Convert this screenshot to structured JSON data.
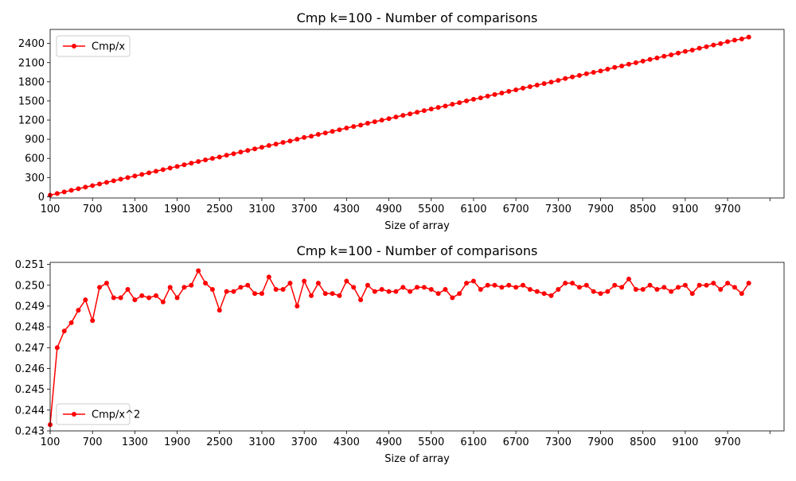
{
  "chart_data": [
    {
      "type": "line",
      "title": "Cmp k=100 - Number of comparisons",
      "xlabel": "Size of array",
      "ylabel": "",
      "xlim": [
        100,
        10500
      ],
      "ylim": [
        -20,
        2620
      ],
      "xticks": [
        100,
        700,
        1300,
        1900,
        2500,
        3100,
        3700,
        4300,
        4900,
        5500,
        6100,
        6700,
        7300,
        7900,
        8500,
        9100,
        9700,
        10300
      ],
      "xtick_labels": [
        "100",
        "700",
        "1300",
        "1900",
        "2500",
        "3100",
        "3700",
        "4300",
        "4900",
        "5500",
        "6100",
        "6700",
        "7300",
        "7900",
        "8500",
        "9100",
        "9700",
        ""
      ],
      "yticks": [
        0,
        300,
        600,
        900,
        1200,
        1500,
        1800,
        2100,
        2400
      ],
      "ytick_labels": [
        "0",
        "300",
        "600",
        "900",
        "1200",
        "1500",
        "1800",
        "2100",
        "2400"
      ],
      "legend_position": "upper-left",
      "series": [
        {
          "name": "Cmp/x",
          "color": "#ff0000",
          "marker": "circle",
          "x": [
            100,
            200,
            300,
            400,
            500,
            600,
            700,
            800,
            900,
            1000,
            1100,
            1200,
            1300,
            1400,
            1500,
            1600,
            1700,
            1800,
            1900,
            2000,
            2100,
            2200,
            2300,
            2400,
            2500,
            2600,
            2700,
            2800,
            2900,
            3000,
            3100,
            3200,
            3300,
            3400,
            3500,
            3600,
            3700,
            3800,
            3900,
            4000,
            4100,
            4200,
            4300,
            4400,
            4500,
            4600,
            4700,
            4800,
            4900,
            5000,
            5100,
            5200,
            5300,
            5400,
            5500,
            5600,
            5700,
            5800,
            5900,
            6000,
            6100,
            6200,
            6300,
            6400,
            6500,
            6600,
            6700,
            6800,
            6900,
            7000,
            7100,
            7200,
            7300,
            7400,
            7500,
            7600,
            7700,
            7800,
            7900,
            8000,
            8100,
            8200,
            8300,
            8400,
            8500,
            8600,
            8700,
            8800,
            8900,
            9000,
            9100,
            9200,
            9300,
            9400,
            9500,
            9600,
            9700,
            9800,
            9900,
            10000
          ],
          "y": [
            24.3,
            49.4,
            74.3,
            99.3,
            124.4,
            149.6,
            173.8,
            199.9,
            225.1,
            249.4,
            274.3,
            299.8,
            324.1,
            349.3,
            374.3,
            399.2,
            423.6,
            449.1,
            473.8,
            499.8,
            525.0,
            551.5,
            576.2,
            599.5,
            622.0,
            649.2,
            673.2,
            698.7,
            724.5,
            748.9,
            773.8,
            801.2,
            824.2,
            849.5,
            871.5,
            899.4,
            928.6,
            947.1,
            976.0,
            998.4,
            1023.6,
            1047.9,
            1076.1,
            1099.6,
            1120.7,
            1150.8,
            1173.8,
            1199.0,
            1222.8,
            1248.7,
            1273.5,
            1297.4,
            1323.5,
            1348.1,
            1372.5,
            1398.5,
            1419.8,
            1447.2,
            1472.5,
            1500.6,
            1526.0,
            1546.8,
            1575.6,
            1600.0,
            1623.2,
            1650.3,
            1673.3,
            1700.0,
            1723.1,
            1747.6,
            1771.3,
            1794.2,
            1822.0,
            1850.7,
            1875.6,
            1898.6,
            1925.1,
            1946.8,
            1969.8,
            1997.4,
            2024.8,
            2046.8,
            2075.2,
            2098.3,
            2124.1,
            2150.4,
            2172.6,
            2199.6,
            2221.8,
            2249.4,
            2276.1,
            2296.4,
            2325.2,
            2349.6,
            2375.9,
            2396.9,
            2427.8,
            2451.3,
            2470.6,
            2500.6
          ]
        }
      ]
    },
    {
      "type": "line",
      "title": "Cmp k=100 - Number of comparisons",
      "xlabel": "Size of array",
      "ylabel": "",
      "xlim": [
        100,
        10500
      ],
      "ylim": [
        0.243,
        0.2511
      ],
      "xticks": [
        100,
        700,
        1300,
        1900,
        2500,
        3100,
        3700,
        4300,
        4900,
        5500,
        6100,
        6700,
        7300,
        7900,
        8500,
        9100,
        9700,
        10300
      ],
      "xtick_labels": [
        "100",
        "700",
        "1300",
        "1900",
        "2500",
        "3100",
        "3700",
        "4300",
        "4900",
        "5500",
        "6100",
        "6700",
        "7300",
        "7900",
        "8500",
        "9100",
        "9700",
        ""
      ],
      "yticks": [
        0.243,
        0.244,
        0.245,
        0.246,
        0.247,
        0.248,
        0.249,
        0.25,
        0.251
      ],
      "ytick_labels": [
        "0.243",
        "0.244",
        "0.245",
        "0.246",
        "0.247",
        "0.248",
        "0.249",
        "0.250",
        "0.251"
      ],
      "legend_position": "lower-left",
      "series": [
        {
          "name": "Cmp/x^2",
          "color": "#ff0000",
          "marker": "circle",
          "x": [
            100,
            200,
            300,
            400,
            500,
            600,
            700,
            800,
            900,
            1000,
            1100,
            1200,
            1300,
            1400,
            1500,
            1600,
            1700,
            1800,
            1900,
            2000,
            2100,
            2200,
            2300,
            2400,
            2500,
            2600,
            2700,
            2800,
            2900,
            3000,
            3100,
            3200,
            3300,
            3400,
            3500,
            3600,
            3700,
            3800,
            3900,
            4000,
            4100,
            4200,
            4300,
            4400,
            4500,
            4600,
            4700,
            4800,
            4900,
            5000,
            5100,
            5200,
            5300,
            5400,
            5500,
            5600,
            5700,
            5800,
            5900,
            6000,
            6100,
            6200,
            6300,
            6400,
            6500,
            6600,
            6700,
            6800,
            6900,
            7000,
            7100,
            7200,
            7300,
            7400,
            7500,
            7600,
            7700,
            7800,
            7900,
            8000,
            8100,
            8200,
            8300,
            8400,
            8500,
            8600,
            8700,
            8800,
            8900,
            9000,
            9100,
            9200,
            9300,
            9400,
            9500,
            9600,
            9700,
            9800,
            9900,
            10000
          ],
          "y": [
            0.2433,
            0.247,
            0.2478,
            0.2482,
            0.2488,
            0.2493,
            0.2483,
            0.2499,
            0.2501,
            0.2494,
            0.2494,
            0.2498,
            0.2493,
            0.2495,
            0.2494,
            0.2495,
            0.2492,
            0.2499,
            0.2494,
            0.2499,
            0.25,
            0.2507,
            0.2501,
            0.2498,
            0.2488,
            0.2497,
            0.2497,
            0.2499,
            0.25,
            0.2496,
            0.2496,
            0.2504,
            0.2498,
            0.2498,
            0.2501,
            0.249,
            0.2502,
            0.2495,
            0.2501,
            0.2496,
            0.2496,
            0.2495,
            0.2502,
            0.2499,
            0.2493,
            0.25,
            0.2497,
            0.2498,
            0.2497,
            0.2497,
            0.2499,
            0.2497,
            0.2499,
            0.2499,
            0.2498,
            0.2496,
            0.2498,
            0.2494,
            0.2496,
            0.2501,
            0.2502,
            0.2498,
            0.25,
            0.25,
            0.2499,
            0.25,
            0.2499,
            0.25,
            0.2498,
            0.2497,
            0.2496,
            0.2495,
            0.2498,
            0.2501,
            0.2501,
            0.2499,
            0.25,
            0.2497,
            0.2496,
            0.2497,
            0.25,
            0.2499,
            0.2503,
            0.2498,
            0.2498,
            0.25,
            0.2498,
            0.2499,
            0.2497,
            0.2499,
            0.25,
            0.2496,
            0.25,
            0.25,
            0.2501,
            0.2498,
            0.2501,
            0.2499,
            0.2496,
            0.2501
          ]
        }
      ]
    }
  ]
}
